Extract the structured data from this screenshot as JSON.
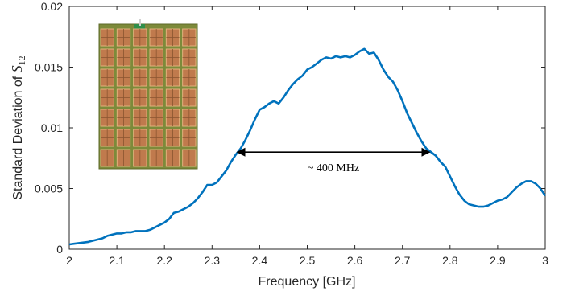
{
  "chart_data": {
    "type": "line",
    "xlabel": "Frequency [GHz]",
    "ylabel_prefix": "Standard Deviation of ",
    "ylabel_symbol": "S",
    "ylabel_subscript": "12",
    "xlim": [
      2,
      3
    ],
    "ylim": [
      0,
      0.02
    ],
    "x_ticks": [
      "2",
      "2.1",
      "2.2",
      "2.3",
      "2.4",
      "2.5",
      "2.6",
      "2.7",
      "2.8",
      "2.9",
      "3"
    ],
    "y_ticks": [
      "0",
      "0.005",
      "0.01",
      "0.015",
      "0.02"
    ],
    "grid": false,
    "line_color": "#0072BD",
    "annotation": {
      "text": "~ 400 MHz",
      "x_start": 2.353,
      "x_end": 2.757,
      "y": 0.008
    },
    "inset_image": "antenna-array-photo",
    "series": [
      {
        "x": [
          2.0,
          2.01,
          2.02,
          2.03,
          2.04,
          2.05,
          2.06,
          2.07,
          2.08,
          2.09,
          2.1,
          2.11,
          2.12,
          2.13,
          2.14,
          2.15,
          2.16,
          2.17,
          2.18,
          2.19,
          2.2,
          2.21,
          2.22,
          2.23,
          2.24,
          2.25,
          2.26,
          2.27,
          2.28,
          2.29,
          2.3,
          2.31,
          2.32,
          2.33,
          2.34,
          2.35,
          2.36,
          2.37,
          2.38,
          2.39,
          2.4,
          2.41,
          2.42,
          2.43,
          2.44,
          2.45,
          2.46,
          2.47,
          2.48,
          2.49,
          2.5,
          2.51,
          2.52,
          2.53,
          2.54,
          2.55,
          2.56,
          2.57,
          2.58,
          2.59,
          2.6,
          2.61,
          2.62,
          2.63,
          2.64,
          2.65,
          2.66,
          2.67,
          2.68,
          2.69,
          2.7,
          2.71,
          2.72,
          2.73,
          2.74,
          2.75,
          2.76,
          2.77,
          2.78,
          2.79,
          2.8,
          2.81,
          2.82,
          2.83,
          2.84,
          2.85,
          2.86,
          2.87,
          2.88,
          2.89,
          2.9,
          2.91,
          2.92,
          2.93,
          2.94,
          2.95,
          2.96,
          2.97,
          2.98,
          2.99,
          3.0
        ],
        "values": [
          0.0004,
          0.00045,
          0.0005,
          0.00055,
          0.0006,
          0.0007,
          0.0008,
          0.0009,
          0.0011,
          0.0012,
          0.0013,
          0.0013,
          0.0014,
          0.0014,
          0.0015,
          0.0015,
          0.0015,
          0.0016,
          0.0018,
          0.002,
          0.0022,
          0.0025,
          0.003,
          0.0031,
          0.0033,
          0.0035,
          0.0038,
          0.0042,
          0.0047,
          0.0053,
          0.0053,
          0.0055,
          0.006,
          0.0065,
          0.0072,
          0.0078,
          0.0083,
          0.009,
          0.0098,
          0.0107,
          0.0115,
          0.0117,
          0.012,
          0.0122,
          0.012,
          0.0125,
          0.0131,
          0.0136,
          0.014,
          0.0143,
          0.0148,
          0.015,
          0.0153,
          0.0156,
          0.0158,
          0.0157,
          0.0159,
          0.0158,
          0.0159,
          0.0158,
          0.016,
          0.0163,
          0.0165,
          0.0161,
          0.0162,
          0.0156,
          0.0148,
          0.0142,
          0.0138,
          0.0131,
          0.0122,
          0.0112,
          0.0104,
          0.0096,
          0.0089,
          0.0083,
          0.008,
          0.0077,
          0.0072,
          0.0068,
          0.006,
          0.0052,
          0.0045,
          0.004,
          0.0037,
          0.0036,
          0.0035,
          0.0035,
          0.0036,
          0.0038,
          0.004,
          0.0041,
          0.0043,
          0.0047,
          0.0051,
          0.0054,
          0.0056,
          0.0056,
          0.0054,
          0.005,
          0.0044
        ]
      }
    ]
  }
}
